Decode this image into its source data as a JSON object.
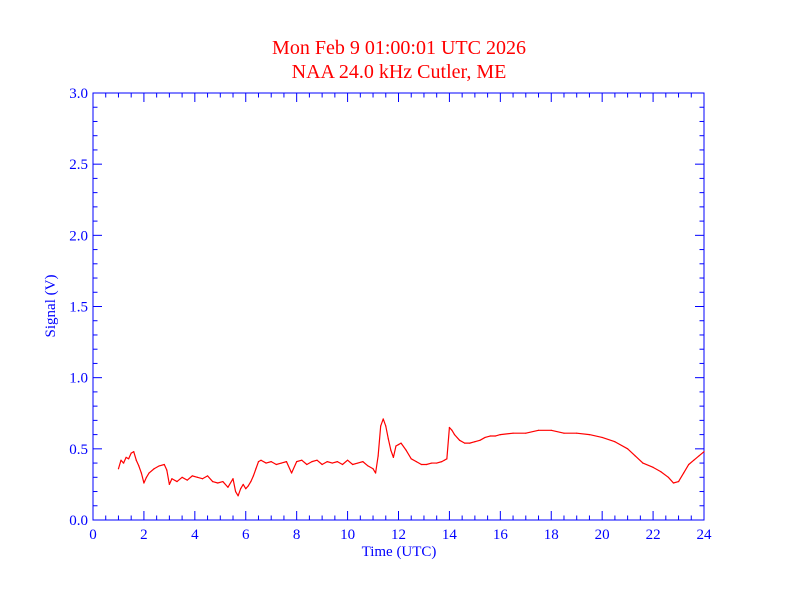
{
  "chart_data": {
    "type": "line",
    "title": "Mon Feb 9 01:00:01 UTC 2026",
    "subtitle": "NAA 24.0 kHz Cutler, ME",
    "xlabel": "Time (UTC)",
    "ylabel": "Signal (V)",
    "xlim": [
      0,
      24
    ],
    "ylim": [
      0,
      3.0
    ],
    "x_ticks": [
      0,
      2,
      4,
      6,
      8,
      10,
      12,
      14,
      16,
      18,
      20,
      22,
      24
    ],
    "x_tick_labels": [
      "0",
      "2",
      "4",
      "6",
      "8",
      "10",
      "12",
      "14",
      "16",
      "18",
      "20",
      "22",
      "24"
    ],
    "y_ticks": [
      0,
      0.5,
      1.0,
      1.5,
      2.0,
      2.5,
      3.0
    ],
    "y_tick_labels": [
      "0.0",
      "0.5",
      "1.0",
      "1.5",
      "2.0",
      "2.5",
      "3.0"
    ],
    "grid": false,
    "colors": {
      "data": "#ff0000",
      "axes": "#0000ff",
      "title": "#ff0000"
    },
    "series": [
      {
        "x": [
          1.0,
          1.1,
          1.2,
          1.3,
          1.4,
          1.5,
          1.6,
          1.7,
          1.8,
          1.9,
          2.0,
          2.1,
          2.2,
          2.4,
          2.6,
          2.8,
          2.9,
          3.0,
          3.1,
          3.3,
          3.5,
          3.7,
          3.9,
          4.1,
          4.3,
          4.5,
          4.7,
          4.9,
          5.1,
          5.3,
          5.5,
          5.6,
          5.7,
          5.8,
          5.9,
          6.0,
          6.1,
          6.2,
          6.3,
          6.4,
          6.5,
          6.6,
          6.8,
          7.0,
          7.2,
          7.4,
          7.6,
          7.8,
          8.0,
          8.2,
          8.4,
          8.6,
          8.8,
          9.0,
          9.2,
          9.4,
          9.6,
          9.8,
          10.0,
          10.2,
          10.4,
          10.6,
          10.8,
          11.0,
          11.1,
          11.2,
          11.3,
          11.4,
          11.5,
          11.6,
          11.7,
          11.8,
          11.9,
          12.0,
          12.1,
          12.3,
          12.5,
          12.7,
          12.9,
          13.1,
          13.3,
          13.5,
          13.7,
          13.8,
          13.9,
          14.0,
          14.1,
          14.2,
          14.4,
          14.6,
          14.8,
          15.0,
          15.2,
          15.4,
          15.6,
          15.8,
          16.0,
          16.5,
          17.0,
          17.5,
          18.0,
          18.5,
          19.0,
          19.5,
          20.0,
          20.5,
          21.0,
          21.3,
          21.6,
          22.0,
          22.3,
          22.6,
          22.8,
          23.0,
          23.2,
          23.4,
          23.6,
          23.8,
          24.0
        ],
        "y": [
          0.36,
          0.42,
          0.4,
          0.44,
          0.43,
          0.47,
          0.48,
          0.42,
          0.38,
          0.33,
          0.26,
          0.3,
          0.33,
          0.36,
          0.38,
          0.39,
          0.35,
          0.25,
          0.29,
          0.27,
          0.3,
          0.28,
          0.31,
          0.3,
          0.29,
          0.31,
          0.27,
          0.26,
          0.27,
          0.23,
          0.29,
          0.2,
          0.17,
          0.22,
          0.25,
          0.22,
          0.24,
          0.27,
          0.31,
          0.36,
          0.41,
          0.42,
          0.4,
          0.41,
          0.39,
          0.4,
          0.41,
          0.33,
          0.41,
          0.42,
          0.39,
          0.41,
          0.42,
          0.39,
          0.41,
          0.4,
          0.41,
          0.39,
          0.42,
          0.39,
          0.4,
          0.41,
          0.38,
          0.36,
          0.33,
          0.45,
          0.66,
          0.71,
          0.66,
          0.57,
          0.49,
          0.44,
          0.52,
          0.53,
          0.54,
          0.49,
          0.43,
          0.41,
          0.39,
          0.39,
          0.4,
          0.4,
          0.41,
          0.42,
          0.43,
          0.65,
          0.63,
          0.6,
          0.56,
          0.54,
          0.54,
          0.55,
          0.56,
          0.58,
          0.59,
          0.59,
          0.6,
          0.61,
          0.61,
          0.63,
          0.63,
          0.61,
          0.61,
          0.6,
          0.58,
          0.55,
          0.5,
          0.45,
          0.4,
          0.37,
          0.34,
          0.3,
          0.26,
          0.27,
          0.33,
          0.39,
          0.42,
          0.45,
          0.48
        ]
      }
    ]
  }
}
